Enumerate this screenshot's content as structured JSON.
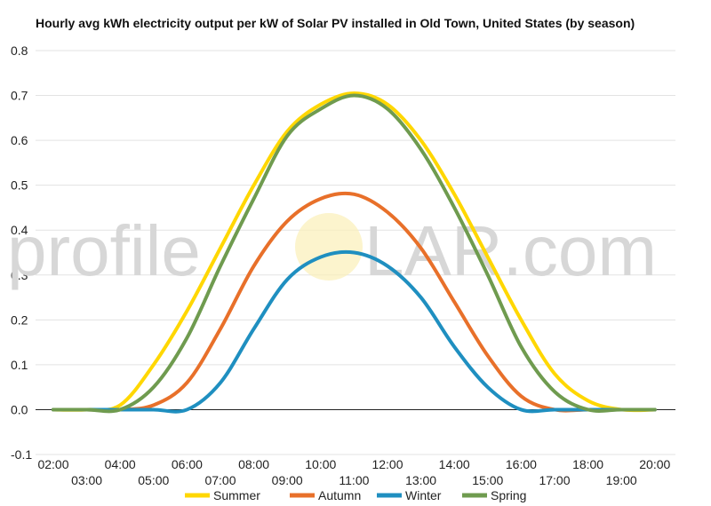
{
  "chart_data": {
    "type": "line",
    "title": "Hourly avg kWh electricity output per kW of Solar PV installed in Old Town, United States (by season)",
    "xlabel": "",
    "ylabel": "",
    "ylim": [
      -0.1,
      0.8
    ],
    "yticks": [
      "-0.1",
      "0.0",
      "0.1",
      "0.2",
      "0.3",
      "0.4",
      "0.5",
      "0.6",
      "0.7",
      "0.8"
    ],
    "categories": [
      "02:00",
      "03:00",
      "04:00",
      "05:00",
      "06:00",
      "07:00",
      "08:00",
      "09:00",
      "10:00",
      "11:00",
      "12:00",
      "13:00",
      "14:00",
      "15:00",
      "16:00",
      "17:00",
      "18:00",
      "19:00",
      "20:00"
    ],
    "grid": true,
    "legend": "bottom",
    "series": [
      {
        "name": "Summer",
        "color": "#FFD700",
        "values": [
          0,
          0,
          0.01,
          0.1,
          0.22,
          0.36,
          0.5,
          0.62,
          0.68,
          0.705,
          0.68,
          0.6,
          0.48,
          0.34,
          0.2,
          0.08,
          0.02,
          0,
          0
        ]
      },
      {
        "name": "Autumn",
        "color": "#E8702A",
        "values": [
          0,
          0,
          0,
          0.01,
          0.06,
          0.18,
          0.32,
          0.42,
          0.47,
          0.48,
          0.44,
          0.36,
          0.24,
          0.12,
          0.03,
          0,
          0,
          0,
          0
        ]
      },
      {
        "name": "Winter",
        "color": "#1F8FC0",
        "values": [
          0,
          0,
          0,
          0,
          0,
          0.06,
          0.18,
          0.29,
          0.34,
          0.35,
          0.32,
          0.25,
          0.14,
          0.05,
          0,
          0,
          0,
          0,
          0
        ]
      },
      {
        "name": "Spring",
        "color": "#6F9B4F",
        "values": [
          0,
          0,
          0,
          0.05,
          0.16,
          0.32,
          0.47,
          0.61,
          0.67,
          0.7,
          0.67,
          0.58,
          0.45,
          0.3,
          0.14,
          0.04,
          0,
          0,
          0
        ]
      }
    ]
  },
  "watermark": {
    "left": "profile",
    "right": "LAR.com"
  }
}
